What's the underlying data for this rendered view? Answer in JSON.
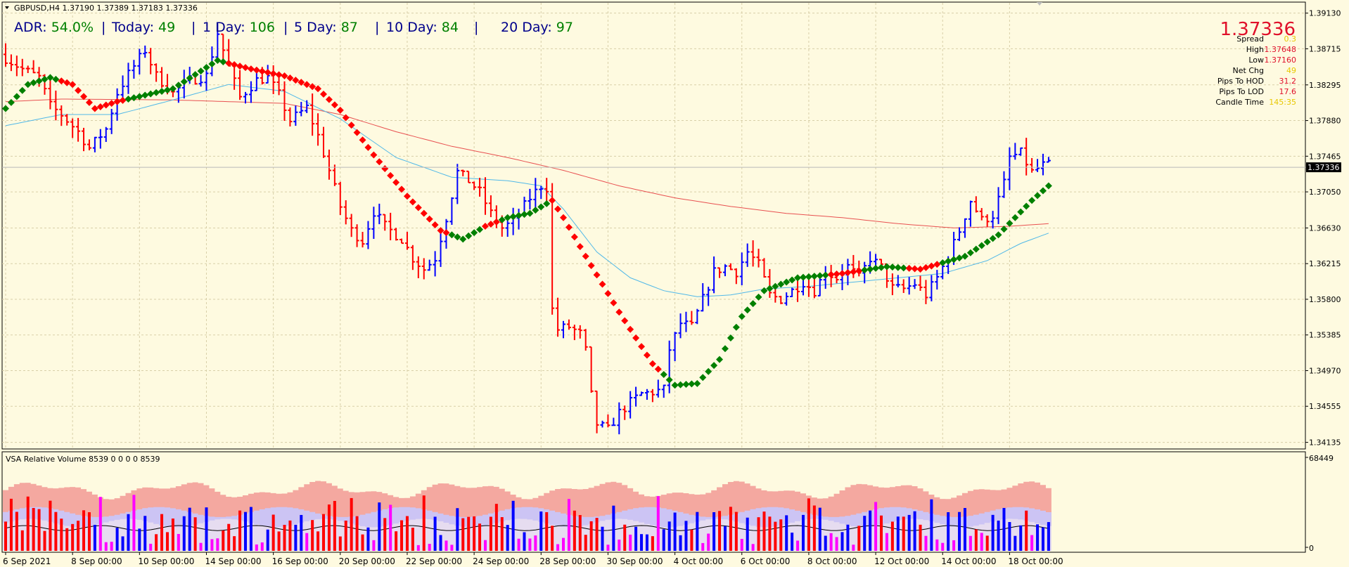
{
  "symbol_line": "GBPUSD,H4  1.37190 1.37389 1.37183 1.37336",
  "adr": {
    "items": [
      {
        "label": "ADR:",
        "value": "54.0%"
      },
      {
        "label": "Today:",
        "value": "49"
      },
      {
        "label": "1 Day:",
        "value": "106"
      },
      {
        "label": "5 Day:",
        "value": "87"
      },
      {
        "label": "10 Day:",
        "value": "84"
      },
      {
        "label": "20 Day:",
        "value": "97"
      }
    ],
    "separator": "|"
  },
  "info_panel": {
    "price": "1.37336",
    "rows": [
      {
        "label": "Spread",
        "value": "0.3"
      },
      {
        "label": "High",
        "value": "1.37648"
      },
      {
        "label": "Low",
        "value": "1.37160"
      },
      {
        "label": "Net Chg",
        "value": "49"
      },
      {
        "label": "Pips To HOD",
        "value": "31.2"
      },
      {
        "label": "Pips To LOD",
        "value": "17.6"
      },
      {
        "label": "Candle Time",
        "value": "145:35"
      }
    ]
  },
  "current_price_label": "1.37336",
  "price_axis": [
    "1.39130",
    "1.38715",
    "1.38295",
    "1.37880",
    "1.37465",
    "1.37050",
    "1.36630",
    "1.36215",
    "1.35800",
    "1.35385",
    "1.34970",
    "1.34555",
    "1.34135"
  ],
  "vol_axis": [
    "68449",
    "0"
  ],
  "vol_title": "VSA Relative Volume 8539 0 0 0 0 8539",
  "time_axis": [
    "6 Sep 2021",
    "8 Sep 00:00",
    "10 Sep 00:00",
    "14 Sep 00:00",
    "16 Sep 00:00",
    "20 Sep 00:00",
    "22 Sep 00:00",
    "24 Sep 00:00",
    "28 Sep 00:00",
    "30 Sep 00:00",
    "4 Oct 00:00",
    "6 Oct 00:00",
    "8 Oct 00:00",
    "12 Oct 00:00",
    "14 Oct 00:00",
    "18 Oct 00:00"
  ],
  "colors": {
    "background": "#fefae0",
    "up_bar": "#0000ff",
    "down_bar": "#ff0000",
    "ma_green": "#008000",
    "ma_red": "#ff0000",
    "ma_slow": "#e85050",
    "ma_fast": "#50b8e8",
    "accent_red": "#e0102a",
    "accent_yellow": "#e8c800",
    "vol_pink": "#ff00ff"
  },
  "chart_data": {
    "type": "ohlc",
    "title": "GBPUSD,H4",
    "ylim": [
      1.3405,
      1.3925
    ],
    "price_ticks": [
      1.3913,
      1.38715,
      1.38295,
      1.3788,
      1.37465,
      1.3705,
      1.3663,
      1.36215,
      1.358,
      1.35385,
      1.3497,
      1.34555,
      1.34135
    ],
    "x_tick_labels": [
      "6 Sep 2021",
      "8 Sep 00:00",
      "10 Sep 00:00",
      "14 Sep 00:00",
      "16 Sep 00:00",
      "20 Sep 00:00",
      "22 Sep 00:00",
      "24 Sep 00:00",
      "28 Sep 00:00",
      "30 Sep 00:00",
      "4 Oct 00:00",
      "6 Oct 00:00",
      "8 Oct 00:00",
      "12 Oct 00:00",
      "14 Oct 00:00",
      "18 Oct 00:00"
    ],
    "x_tick_bar_index": [
      0,
      12,
      24,
      36,
      48,
      60,
      72,
      84,
      96,
      108,
      120,
      132,
      144,
      156,
      168,
      180
    ],
    "price_anchors": [
      [
        0,
        1.3865
      ],
      [
        4,
        1.3848
      ],
      [
        7,
        1.3838
      ],
      [
        9,
        1.3805
      ],
      [
        11,
        1.3795
      ],
      [
        14,
        1.3775
      ],
      [
        16,
        1.3756
      ],
      [
        19,
        1.3778
      ],
      [
        21,
        1.382
      ],
      [
        23,
        1.3842
      ],
      [
        26,
        1.387
      ],
      [
        28,
        1.384
      ],
      [
        31,
        1.382
      ],
      [
        34,
        1.3835
      ],
      [
        37,
        1.384
      ],
      [
        39,
        1.389
      ],
      [
        41,
        1.385
      ],
      [
        43,
        1.3815
      ],
      [
        46,
        1.3835
      ],
      [
        48,
        1.3838
      ],
      [
        50,
        1.3818
      ],
      [
        52,
        1.3788
      ],
      [
        55,
        1.3803
      ],
      [
        57,
        1.377
      ],
      [
        59,
        1.373
      ],
      [
        61,
        1.3688
      ],
      [
        63,
        1.366
      ],
      [
        65,
        1.3648
      ],
      [
        67,
        1.3682
      ],
      [
        69,
        1.3665
      ],
      [
        72,
        1.365
      ],
      [
        74,
        1.3628
      ],
      [
        76,
        1.3615
      ],
      [
        78,
        1.3628
      ],
      [
        80,
        1.3675
      ],
      [
        82,
        1.3728
      ],
      [
        84,
        1.3718
      ],
      [
        86,
        1.3705
      ],
      [
        88,
        1.368
      ],
      [
        90,
        1.3663
      ],
      [
        92,
        1.367
      ],
      [
        95,
        1.3698
      ],
      [
        97,
        1.3712
      ],
      [
        98,
        1.371
      ],
      [
        99,
        1.3568
      ],
      [
        100,
        1.3545
      ],
      [
        102,
        1.3548
      ],
      [
        104,
        1.354
      ],
      [
        105,
        1.352
      ],
      [
        106,
        1.3468
      ],
      [
        107,
        1.3435
      ],
      [
        109,
        1.3428
      ],
      [
        111,
        1.3448
      ],
      [
        113,
        1.346
      ],
      [
        115,
        1.347
      ],
      [
        117,
        1.3472
      ],
      [
        119,
        1.3475
      ],
      [
        120,
        1.3522
      ],
      [
        122,
        1.3552
      ],
      [
        124,
        1.3548
      ],
      [
        126,
        1.358
      ],
      [
        128,
        1.3612
      ],
      [
        130,
        1.3618
      ],
      [
        132,
        1.3612
      ],
      [
        134,
        1.3635
      ],
      [
        136,
        1.362
      ],
      [
        138,
        1.3585
      ],
      [
        140,
        1.358
      ],
      [
        142,
        1.359
      ],
      [
        144,
        1.36
      ],
      [
        146,
        1.359
      ],
      [
        148,
        1.3612
      ],
      [
        150,
        1.3605
      ],
      [
        152,
        1.3618
      ],
      [
        154,
        1.3605
      ],
      [
        156,
        1.3628
      ],
      [
        158,
        1.3617
      ],
      [
        160,
        1.3593
      ],
      [
        162,
        1.3592
      ],
      [
        164,
        1.3598
      ],
      [
        166,
        1.3585
      ],
      [
        168,
        1.3605
      ],
      [
        170,
        1.363
      ],
      [
        172,
        1.366
      ],
      [
        174,
        1.3695
      ],
      [
        176,
        1.3672
      ],
      [
        178,
        1.3678
      ],
      [
        180,
        1.3715
      ],
      [
        181,
        1.3745
      ],
      [
        183,
        1.375
      ],
      [
        185,
        1.3728
      ],
      [
        187,
        1.3736
      ]
    ],
    "ma_colored_anchors": [
      [
        0,
        1.3802
      ],
      [
        4,
        1.383
      ],
      [
        8,
        1.3838
      ],
      [
        12,
        1.383
      ],
      [
        16,
        1.3802
      ],
      [
        20,
        1.381
      ],
      [
        30,
        1.3825
      ],
      [
        38,
        1.3858
      ],
      [
        44,
        1.3848
      ],
      [
        50,
        1.384
      ],
      [
        56,
        1.3825
      ],
      [
        60,
        1.38
      ],
      [
        66,
        1.3748
      ],
      [
        72,
        1.37
      ],
      [
        78,
        1.366
      ],
      [
        82,
        1.365
      ],
      [
        86,
        1.3665
      ],
      [
        90,
        1.3675
      ],
      [
        94,
        1.368
      ],
      [
        98,
        1.3695
      ],
      [
        100,
        1.3675
      ],
      [
        104,
        1.363
      ],
      [
        110,
        1.3565
      ],
      [
        116,
        1.3505
      ],
      [
        120,
        1.348
      ],
      [
        124,
        1.3482
      ],
      [
        128,
        1.351
      ],
      [
        132,
        1.356
      ],
      [
        136,
        1.359
      ],
      [
        142,
        1.3605
      ],
      [
        150,
        1.361
      ],
      [
        158,
        1.3618
      ],
      [
        164,
        1.3615
      ],
      [
        172,
        1.363
      ],
      [
        178,
        1.3655
      ],
      [
        184,
        1.3695
      ],
      [
        187,
        1.3712
      ]
    ],
    "ma_color_segments": [
      {
        "from": 0,
        "to": 10,
        "trend": "up"
      },
      {
        "from": 10,
        "to": 22,
        "trend": "down"
      },
      {
        "from": 22,
        "to": 40,
        "trend": "up"
      },
      {
        "from": 40,
        "to": 80,
        "trend": "down"
      },
      {
        "from": 80,
        "to": 86,
        "trend": "up"
      },
      {
        "from": 86,
        "to": 89,
        "trend": "down"
      },
      {
        "from": 89,
        "to": 98,
        "trend": "up"
      },
      {
        "from": 98,
        "to": 118,
        "trend": "down"
      },
      {
        "from": 118,
        "to": 148,
        "trend": "up"
      },
      {
        "from": 148,
        "to": 154,
        "trend": "down"
      },
      {
        "from": 154,
        "to": 162,
        "trend": "up"
      },
      {
        "from": 162,
        "to": 168,
        "trend": "down"
      },
      {
        "from": 168,
        "to": 188,
        "trend": "up"
      }
    ],
    "ma_slow_anchors": [
      [
        0,
        1.381
      ],
      [
        10,
        1.3813
      ],
      [
        30,
        1.3812
      ],
      [
        50,
        1.3808
      ],
      [
        60,
        1.3795
      ],
      [
        70,
        1.3775
      ],
      [
        80,
        1.3758
      ],
      [
        90,
        1.3745
      ],
      [
        100,
        1.373
      ],
      [
        110,
        1.3712
      ],
      [
        120,
        1.3698
      ],
      [
        130,
        1.3688
      ],
      [
        140,
        1.368
      ],
      [
        150,
        1.3675
      ],
      [
        160,
        1.3668
      ],
      [
        170,
        1.3663
      ],
      [
        180,
        1.3665
      ],
      [
        187,
        1.3668
      ]
    ],
    "ma_fast_anchors": [
      [
        0,
        1.3782
      ],
      [
        10,
        1.3795
      ],
      [
        20,
        1.3795
      ],
      [
        30,
        1.3812
      ],
      [
        40,
        1.383
      ],
      [
        50,
        1.3822
      ],
      [
        60,
        1.379
      ],
      [
        70,
        1.3745
      ],
      [
        80,
        1.3722
      ],
      [
        90,
        1.3718
      ],
      [
        96,
        1.3712
      ],
      [
        100,
        1.3685
      ],
      [
        106,
        1.3635
      ],
      [
        112,
        1.3605
      ],
      [
        118,
        1.359
      ],
      [
        124,
        1.3583
      ],
      [
        130,
        1.3585
      ],
      [
        136,
        1.3592
      ],
      [
        144,
        1.3595
      ],
      [
        152,
        1.36
      ],
      [
        160,
        1.3605
      ],
      [
        168,
        1.361
      ],
      [
        176,
        1.3625
      ],
      [
        182,
        1.3645
      ],
      [
        187,
        1.3657
      ]
    ],
    "volume": {
      "name": "VSA Relative Volume",
      "ylim": [
        0,
        68449
      ]
    }
  }
}
